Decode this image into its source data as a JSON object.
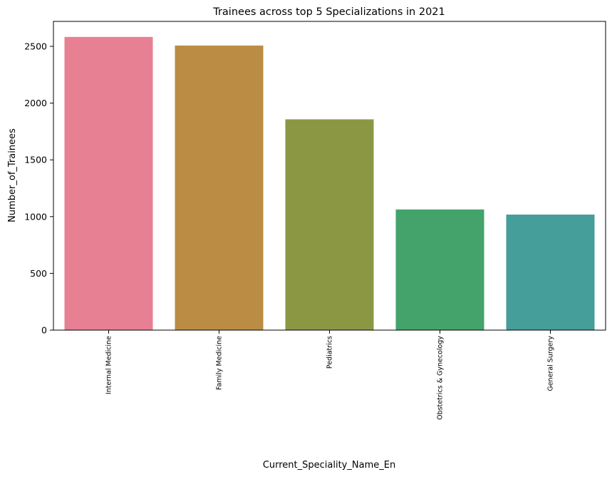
{
  "chart_data": {
    "type": "bar",
    "title": "Trainees across top 5 Specializations in 2021",
    "xlabel": "Current_Speciality_Name_En",
    "ylabel": "Number_of_Trainees",
    "categories": [
      "Internal Medicine",
      "Family Medicine",
      "Pediatrics",
      "Obstetrics & Gynecology",
      "General Surgery"
    ],
    "values": [
      2583,
      2507,
      1857,
      1063,
      1018
    ],
    "colors": [
      "#e88093",
      "#ba8c44",
      "#8c9743",
      "#44a36a",
      "#459e99"
    ],
    "ylim": [
      0,
      2720
    ],
    "yticks": [
      0,
      500,
      1000,
      1500,
      2000,
      2500
    ],
    "grid": false,
    "legend": "none"
  }
}
